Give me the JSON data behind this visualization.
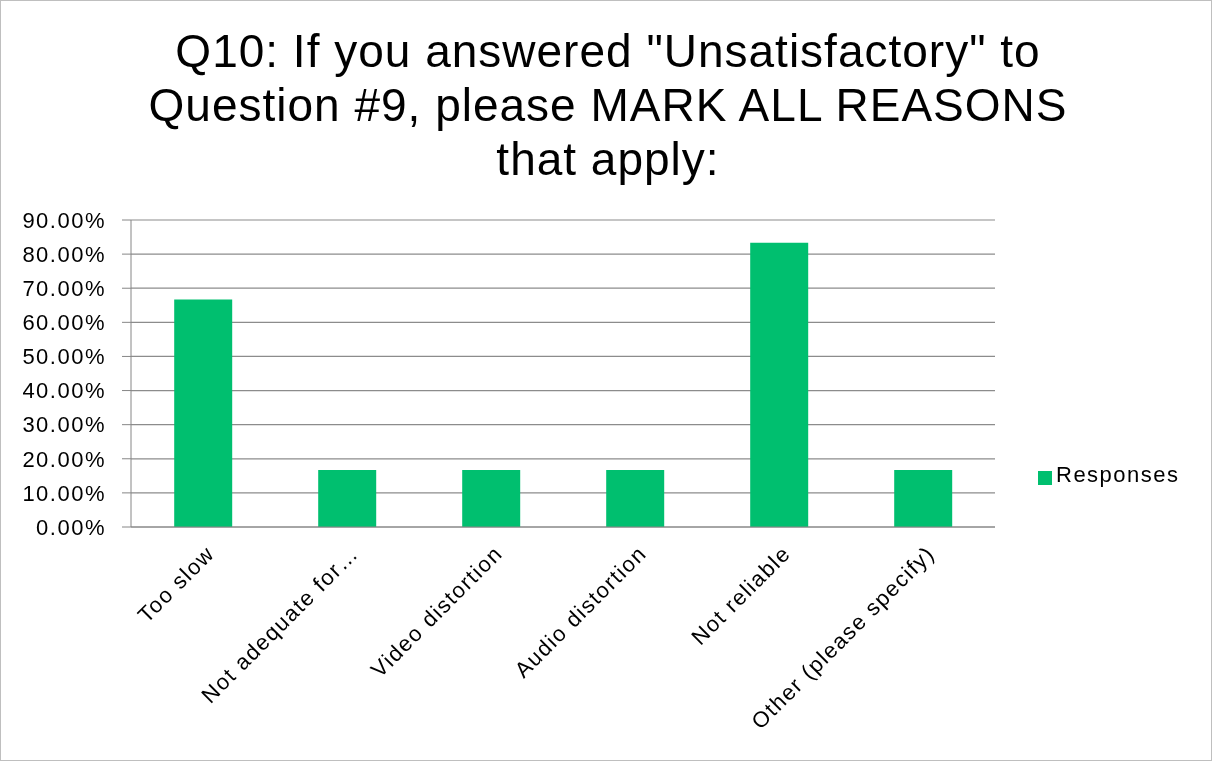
{
  "chart_data": {
    "type": "bar",
    "title": "Q10: If you answered \"Unsatisfactory\" to Question #9, please MARK ALL REASONS that apply:",
    "categories": [
      "Too slow",
      "Not adequate for…",
      "Video distortion",
      "Audio distortion",
      "Not reliable",
      "Other (please specify)"
    ],
    "series": [
      {
        "name": "Responses",
        "color": "#00bf6f",
        "values": [
          66.7,
          16.7,
          16.7,
          16.7,
          83.3,
          16.7
        ]
      }
    ],
    "ylim": [
      0,
      90
    ],
    "yticks": [
      {
        "value": 0,
        "label": "0.00%"
      },
      {
        "value": 10,
        "label": "10.00%"
      },
      {
        "value": 20,
        "label": "20.00%"
      },
      {
        "value": 30,
        "label": "30.00%"
      },
      {
        "value": 40,
        "label": "40.00%"
      },
      {
        "value": 50,
        "label": "50.00%"
      },
      {
        "value": 60,
        "label": "60.00%"
      },
      {
        "value": 70,
        "label": "70.00%"
      },
      {
        "value": 80,
        "label": "80.00%"
      },
      {
        "value": 90,
        "label": "90.00%"
      }
    ],
    "grid": "y",
    "legend": "right"
  }
}
